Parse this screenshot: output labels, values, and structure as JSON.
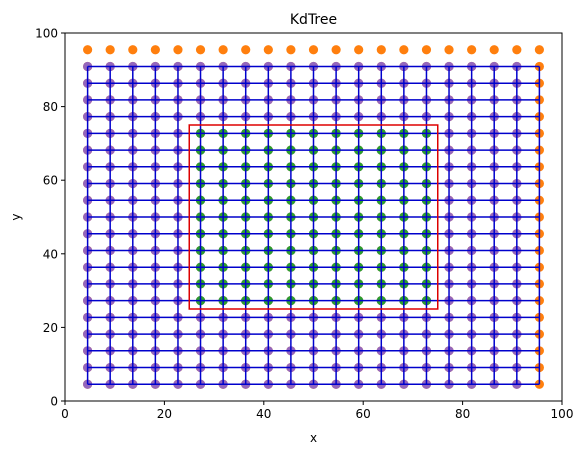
{
  "chart_data": {
    "type": "scatter",
    "title": "KdTree",
    "xlabel": "x",
    "ylabel": "y",
    "xlim": [
      0,
      100
    ],
    "ylim": [
      0,
      100
    ],
    "xticks": [
      0,
      20,
      40,
      60,
      80,
      100
    ],
    "yticks": [
      0,
      20,
      40,
      60,
      80,
      100
    ],
    "grid": false,
    "points": {
      "x": [
        4.55,
        9.09,
        13.64,
        18.18,
        22.73,
        27.27,
        31.82,
        36.36,
        40.91,
        45.45,
        50.0,
        54.55,
        59.09,
        63.64,
        68.18,
        72.73,
        77.27,
        81.82,
        86.36,
        90.91,
        95.45
      ],
      "y": [
        4.55,
        9.09,
        13.64,
        18.18,
        22.73,
        27.27,
        31.82,
        36.36,
        40.91,
        45.45,
        50.0,
        54.55,
        59.09,
        63.64,
        68.18,
        72.73,
        77.27,
        81.82,
        86.36,
        90.91,
        95.45
      ]
    },
    "query_range": {
      "x": [
        25,
        75
      ],
      "y": [
        25,
        75
      ]
    },
    "split_lines": {
      "horizontal_y": [
        4.55,
        9.09,
        13.64,
        18.18,
        22.73,
        27.27,
        31.82,
        36.36,
        40.91,
        45.45,
        50.0,
        54.55,
        59.09,
        63.64,
        68.18,
        72.73,
        77.27,
        81.82,
        86.36,
        90.91
      ],
      "vertical_x": [
        4.55,
        9.09,
        13.64,
        18.18,
        22.73,
        27.27,
        31.82,
        36.36,
        40.91,
        45.45,
        50.0,
        54.55,
        59.09,
        63.64,
        68.18,
        72.73,
        77.27,
        81.82,
        86.36,
        90.91,
        95.45
      ],
      "x_extent": [
        4.55,
        95.45
      ],
      "y_extent": [
        4.55,
        90.91
      ]
    },
    "colors": {
      "all_points": "#ff7f0e",
      "tree_nodes": "#9467bd",
      "in_range": "#2ca02c",
      "split_lines": "#0000cc",
      "query_rect": "#dd0000"
    }
  }
}
